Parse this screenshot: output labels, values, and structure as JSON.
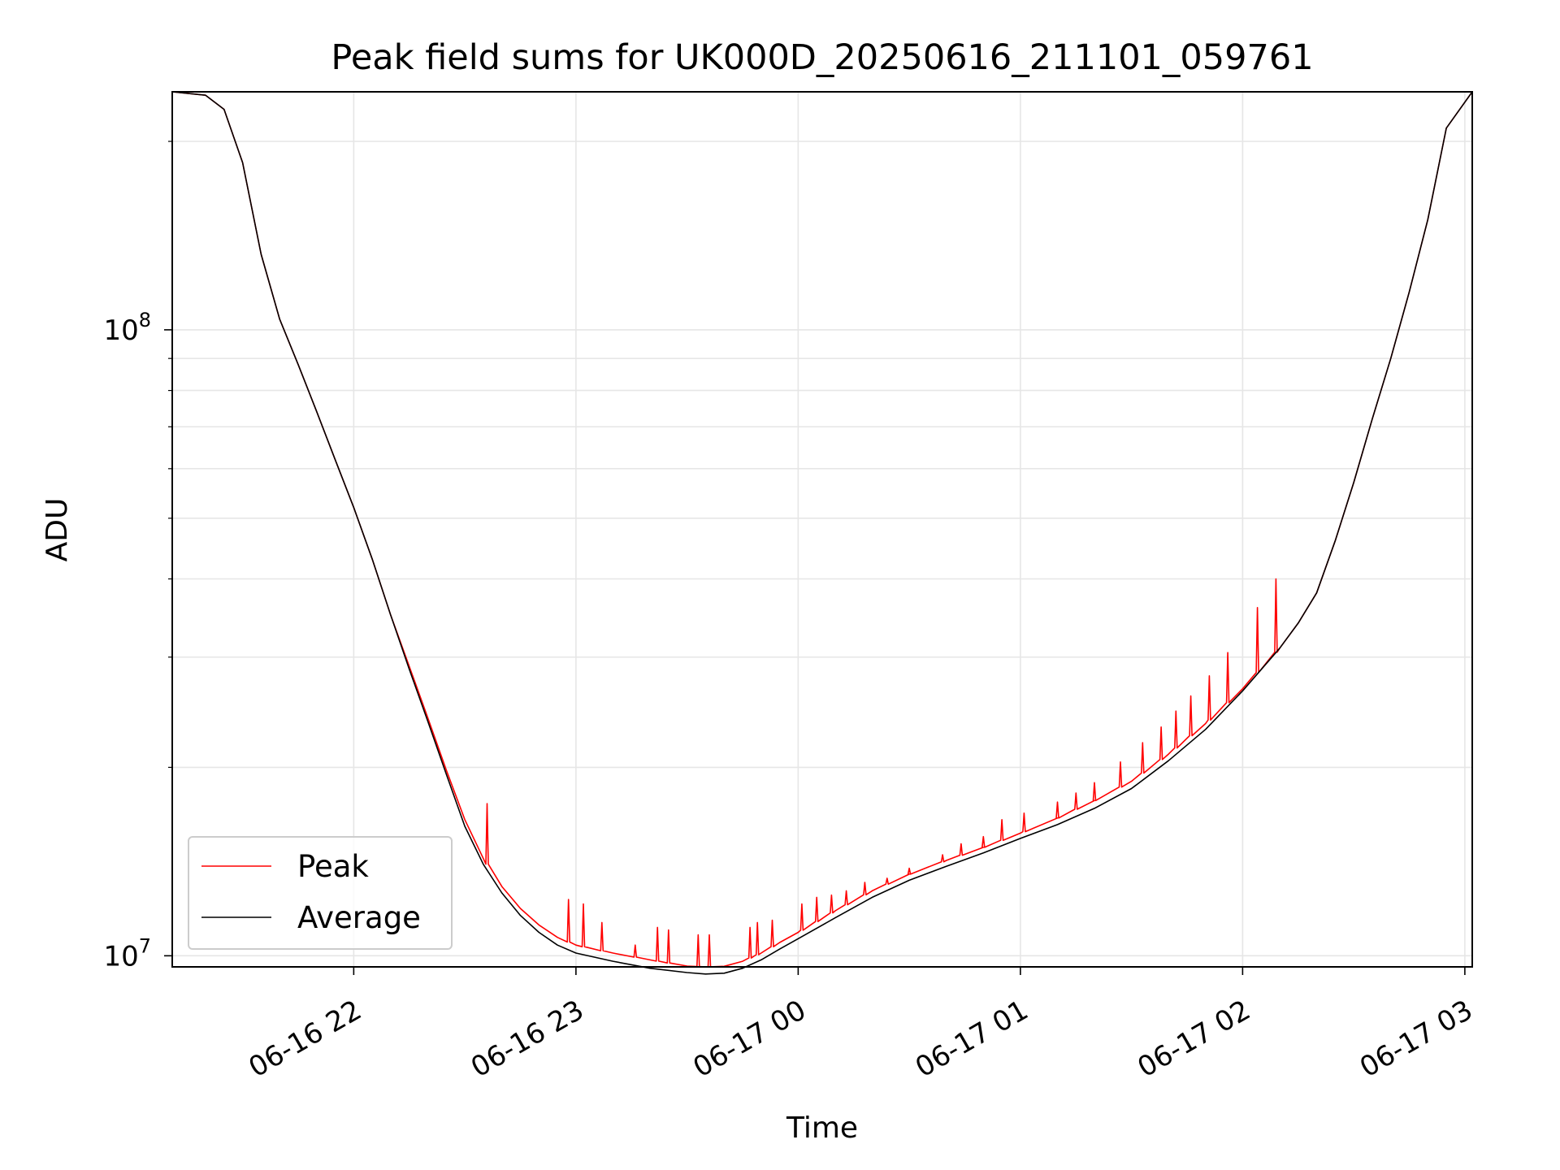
{
  "chart_data": {
    "type": "line",
    "title": "Peak field sums for UK000D_20250616_211101_059761",
    "xlabel": "Time",
    "ylabel": "ADU",
    "yscale": "log",
    "ylim": [
      9600000,
      240000000
    ],
    "xlim": [
      "2025-06-16 21:11",
      "2025-06-17 03:02"
    ],
    "x_ticks": [
      {
        "t": "2025-06-16 22:00",
        "label": "06-16 22"
      },
      {
        "t": "2025-06-16 23:00",
        "label": "06-16 23"
      },
      {
        "t": "2025-06-17 00:00",
        "label": "06-17 00"
      },
      {
        "t": "2025-06-17 01:00",
        "label": "06-17 01"
      },
      {
        "t": "2025-06-17 02:00",
        "label": "06-17 02"
      },
      {
        "t": "2025-06-17 03:00",
        "label": "06-17 03"
      }
    ],
    "y_ticks": [
      {
        "v": 10000000,
        "base": "10",
        "exp": "7"
      },
      {
        "v": 100000000,
        "base": "10",
        "exp": "8"
      }
    ],
    "grid": true,
    "legend_position": "lower-left",
    "series": [
      {
        "name": "Peak",
        "color": "#ff0000",
        "x": [
          "2025-06-16 21:11",
          "2025-06-16 21:20",
          "2025-06-16 21:25",
          "2025-06-16 21:30",
          "2025-06-16 21:35",
          "2025-06-16 21:40",
          "2025-06-16 21:45",
          "2025-06-16 21:50",
          "2025-06-16 21:55",
          "2025-06-16 22:00",
          "2025-06-16 22:05",
          "2025-06-16 22:10",
          "2025-06-16 22:15",
          "2025-06-16 22:20",
          "2025-06-16 22:25",
          "2025-06-16 22:30",
          "2025-06-16 22:35",
          "2025-06-16 22:40",
          "2025-06-16 22:45",
          "2025-06-16 22:50",
          "2025-06-16 22:55",
          "2025-06-16 23:00",
          "2025-06-16 23:10",
          "2025-06-16 23:20",
          "2025-06-16 23:30",
          "2025-06-16 23:35",
          "2025-06-16 23:40",
          "2025-06-16 23:45",
          "2025-06-16 23:50",
          "2025-06-16 23:55",
          "2025-06-17 00:00",
          "2025-06-17 00:10",
          "2025-06-17 00:20",
          "2025-06-17 00:30",
          "2025-06-17 00:40",
          "2025-06-17 00:50",
          "2025-06-17 01:00",
          "2025-06-17 01:10",
          "2025-06-17 01:20",
          "2025-06-17 01:30",
          "2025-06-17 01:40",
          "2025-06-17 01:50",
          "2025-06-17 02:00",
          "2025-06-17 02:10",
          "2025-06-17 02:15",
          "2025-06-17 02:20",
          "2025-06-17 02:25",
          "2025-06-17 02:30",
          "2025-06-17 02:35",
          "2025-06-17 02:40",
          "2025-06-17 02:45",
          "2025-06-17 02:50",
          "2025-06-17 02:55",
          "2025-06-17 03:02"
        ],
        "values": [
          240000000,
          237000000,
          225000000,
          185000000,
          132000000,
          104000000,
          88000000,
          74000000,
          62000000,
          52000000,
          43000000,
          35000000,
          29000000,
          24000000,
          19800000,
          16500000,
          14300000,
          12900000,
          11900000,
          11200000,
          10700000,
          10400000,
          10100000,
          9850000,
          9630000,
          9600000,
          9620000,
          9800000,
          10100000,
          10500000,
          10900000,
          11800000,
          12700000,
          13500000,
          14200000,
          14900000,
          15700000,
          16600000,
          17700000,
          19000000,
          21000000,
          23500000,
          26700000,
          31000000,
          34000000,
          38000000,
          46000000,
          57000000,
          72000000,
          90000000,
          115000000,
          150000000,
          210000000,
          240000000
        ],
        "spikes": [
          {
            "x": "2025-06-16 22:36",
            "v": 17500000
          },
          {
            "x": "2025-06-16 22:58",
            "v": 12300000
          },
          {
            "x": "2025-06-16 23:02",
            "v": 12100000
          },
          {
            "x": "2025-06-16 23:07",
            "v": 11300000
          },
          {
            "x": "2025-06-16 23:16",
            "v": 10400000
          },
          {
            "x": "2025-06-16 23:22",
            "v": 11100000
          },
          {
            "x": "2025-06-16 23:25",
            "v": 11000000
          },
          {
            "x": "2025-06-16 23:33",
            "v": 10800000
          },
          {
            "x": "2025-06-16 23:36",
            "v": 10800000
          },
          {
            "x": "2025-06-16 23:47",
            "v": 11100000
          },
          {
            "x": "2025-06-16 23:49",
            "v": 11300000
          },
          {
            "x": "2025-06-16 23:53",
            "v": 11400000
          },
          {
            "x": "2025-06-17 00:01",
            "v": 12100000
          },
          {
            "x": "2025-06-17 00:05",
            "v": 12400000
          },
          {
            "x": "2025-06-17 00:09",
            "v": 12500000
          },
          {
            "x": "2025-06-17 00:13",
            "v": 12700000
          },
          {
            "x": "2025-06-17 00:18",
            "v": 13100000
          },
          {
            "x": "2025-06-17 00:24",
            "v": 13300000
          },
          {
            "x": "2025-06-17 00:30",
            "v": 13800000
          },
          {
            "x": "2025-06-17 00:39",
            "v": 14500000
          },
          {
            "x": "2025-06-17 00:44",
            "v": 15100000
          },
          {
            "x": "2025-06-17 00:50",
            "v": 15500000
          },
          {
            "x": "2025-06-17 00:55",
            "v": 16500000
          },
          {
            "x": "2025-06-17 01:01",
            "v": 16900000
          },
          {
            "x": "2025-06-17 01:10",
            "v": 17600000
          },
          {
            "x": "2025-06-17 01:15",
            "v": 18200000
          },
          {
            "x": "2025-06-17 01:20",
            "v": 18900000
          },
          {
            "x": "2025-06-17 01:27",
            "v": 20400000
          },
          {
            "x": "2025-06-17 01:33",
            "v": 21900000
          },
          {
            "x": "2025-06-17 01:38",
            "v": 23200000
          },
          {
            "x": "2025-06-17 01:42",
            "v": 24600000
          },
          {
            "x": "2025-06-17 01:46",
            "v": 26000000
          },
          {
            "x": "2025-06-17 01:51",
            "v": 28000000
          },
          {
            "x": "2025-06-17 01:56",
            "v": 30500000
          },
          {
            "x": "2025-06-17 02:04",
            "v": 36000000
          },
          {
            "x": "2025-06-17 02:09",
            "v": 40000000
          }
        ]
      },
      {
        "name": "Average",
        "color": "#000000",
        "x": [
          "2025-06-16 21:11",
          "2025-06-16 21:20",
          "2025-06-16 21:25",
          "2025-06-16 21:30",
          "2025-06-16 21:35",
          "2025-06-16 21:40",
          "2025-06-16 21:45",
          "2025-06-16 21:50",
          "2025-06-16 21:55",
          "2025-06-16 22:00",
          "2025-06-16 22:05",
          "2025-06-16 22:10",
          "2025-06-16 22:15",
          "2025-06-16 22:20",
          "2025-06-16 22:25",
          "2025-06-16 22:30",
          "2025-06-16 22:35",
          "2025-06-16 22:40",
          "2025-06-16 22:45",
          "2025-06-16 22:50",
          "2025-06-16 22:55",
          "2025-06-16 23:00",
          "2025-06-16 23:10",
          "2025-06-16 23:20",
          "2025-06-16 23:30",
          "2025-06-16 23:35",
          "2025-06-16 23:40",
          "2025-06-16 23:45",
          "2025-06-16 23:50",
          "2025-06-16 23:55",
          "2025-06-17 00:00",
          "2025-06-17 00:10",
          "2025-06-17 00:20",
          "2025-06-17 00:30",
          "2025-06-17 00:40",
          "2025-06-17 00:50",
          "2025-06-17 01:00",
          "2025-06-17 01:10",
          "2025-06-17 01:20",
          "2025-06-17 01:30",
          "2025-06-17 01:40",
          "2025-06-17 01:50",
          "2025-06-17 02:00",
          "2025-06-17 02:10",
          "2025-06-17 02:15",
          "2025-06-17 02:20",
          "2025-06-17 02:25",
          "2025-06-17 02:30",
          "2025-06-17 02:35",
          "2025-06-17 02:40",
          "2025-06-17 02:45",
          "2025-06-17 02:50",
          "2025-06-17 02:55",
          "2025-06-17 03:02"
        ],
        "values": [
          240000000,
          237000000,
          225000000,
          185000000,
          132000000,
          104000000,
          88000000,
          74000000,
          62000000,
          52000000,
          43000000,
          35000000,
          28700000,
          23700000,
          19500000,
          16100000,
          14000000,
          12600000,
          11600000,
          10900000,
          10400000,
          10100000,
          9800000,
          9550000,
          9400000,
          9350000,
          9380000,
          9550000,
          9850000,
          10250000,
          10650000,
          11500000,
          12400000,
          13200000,
          13900000,
          14600000,
          15400000,
          16200000,
          17200000,
          18500000,
          20500000,
          23000000,
          26500000,
          31000000,
          34000000,
          38000000,
          46000000,
          57000000,
          72000000,
          90000000,
          115000000,
          150000000,
          210000000,
          240000000
        ]
      }
    ]
  }
}
